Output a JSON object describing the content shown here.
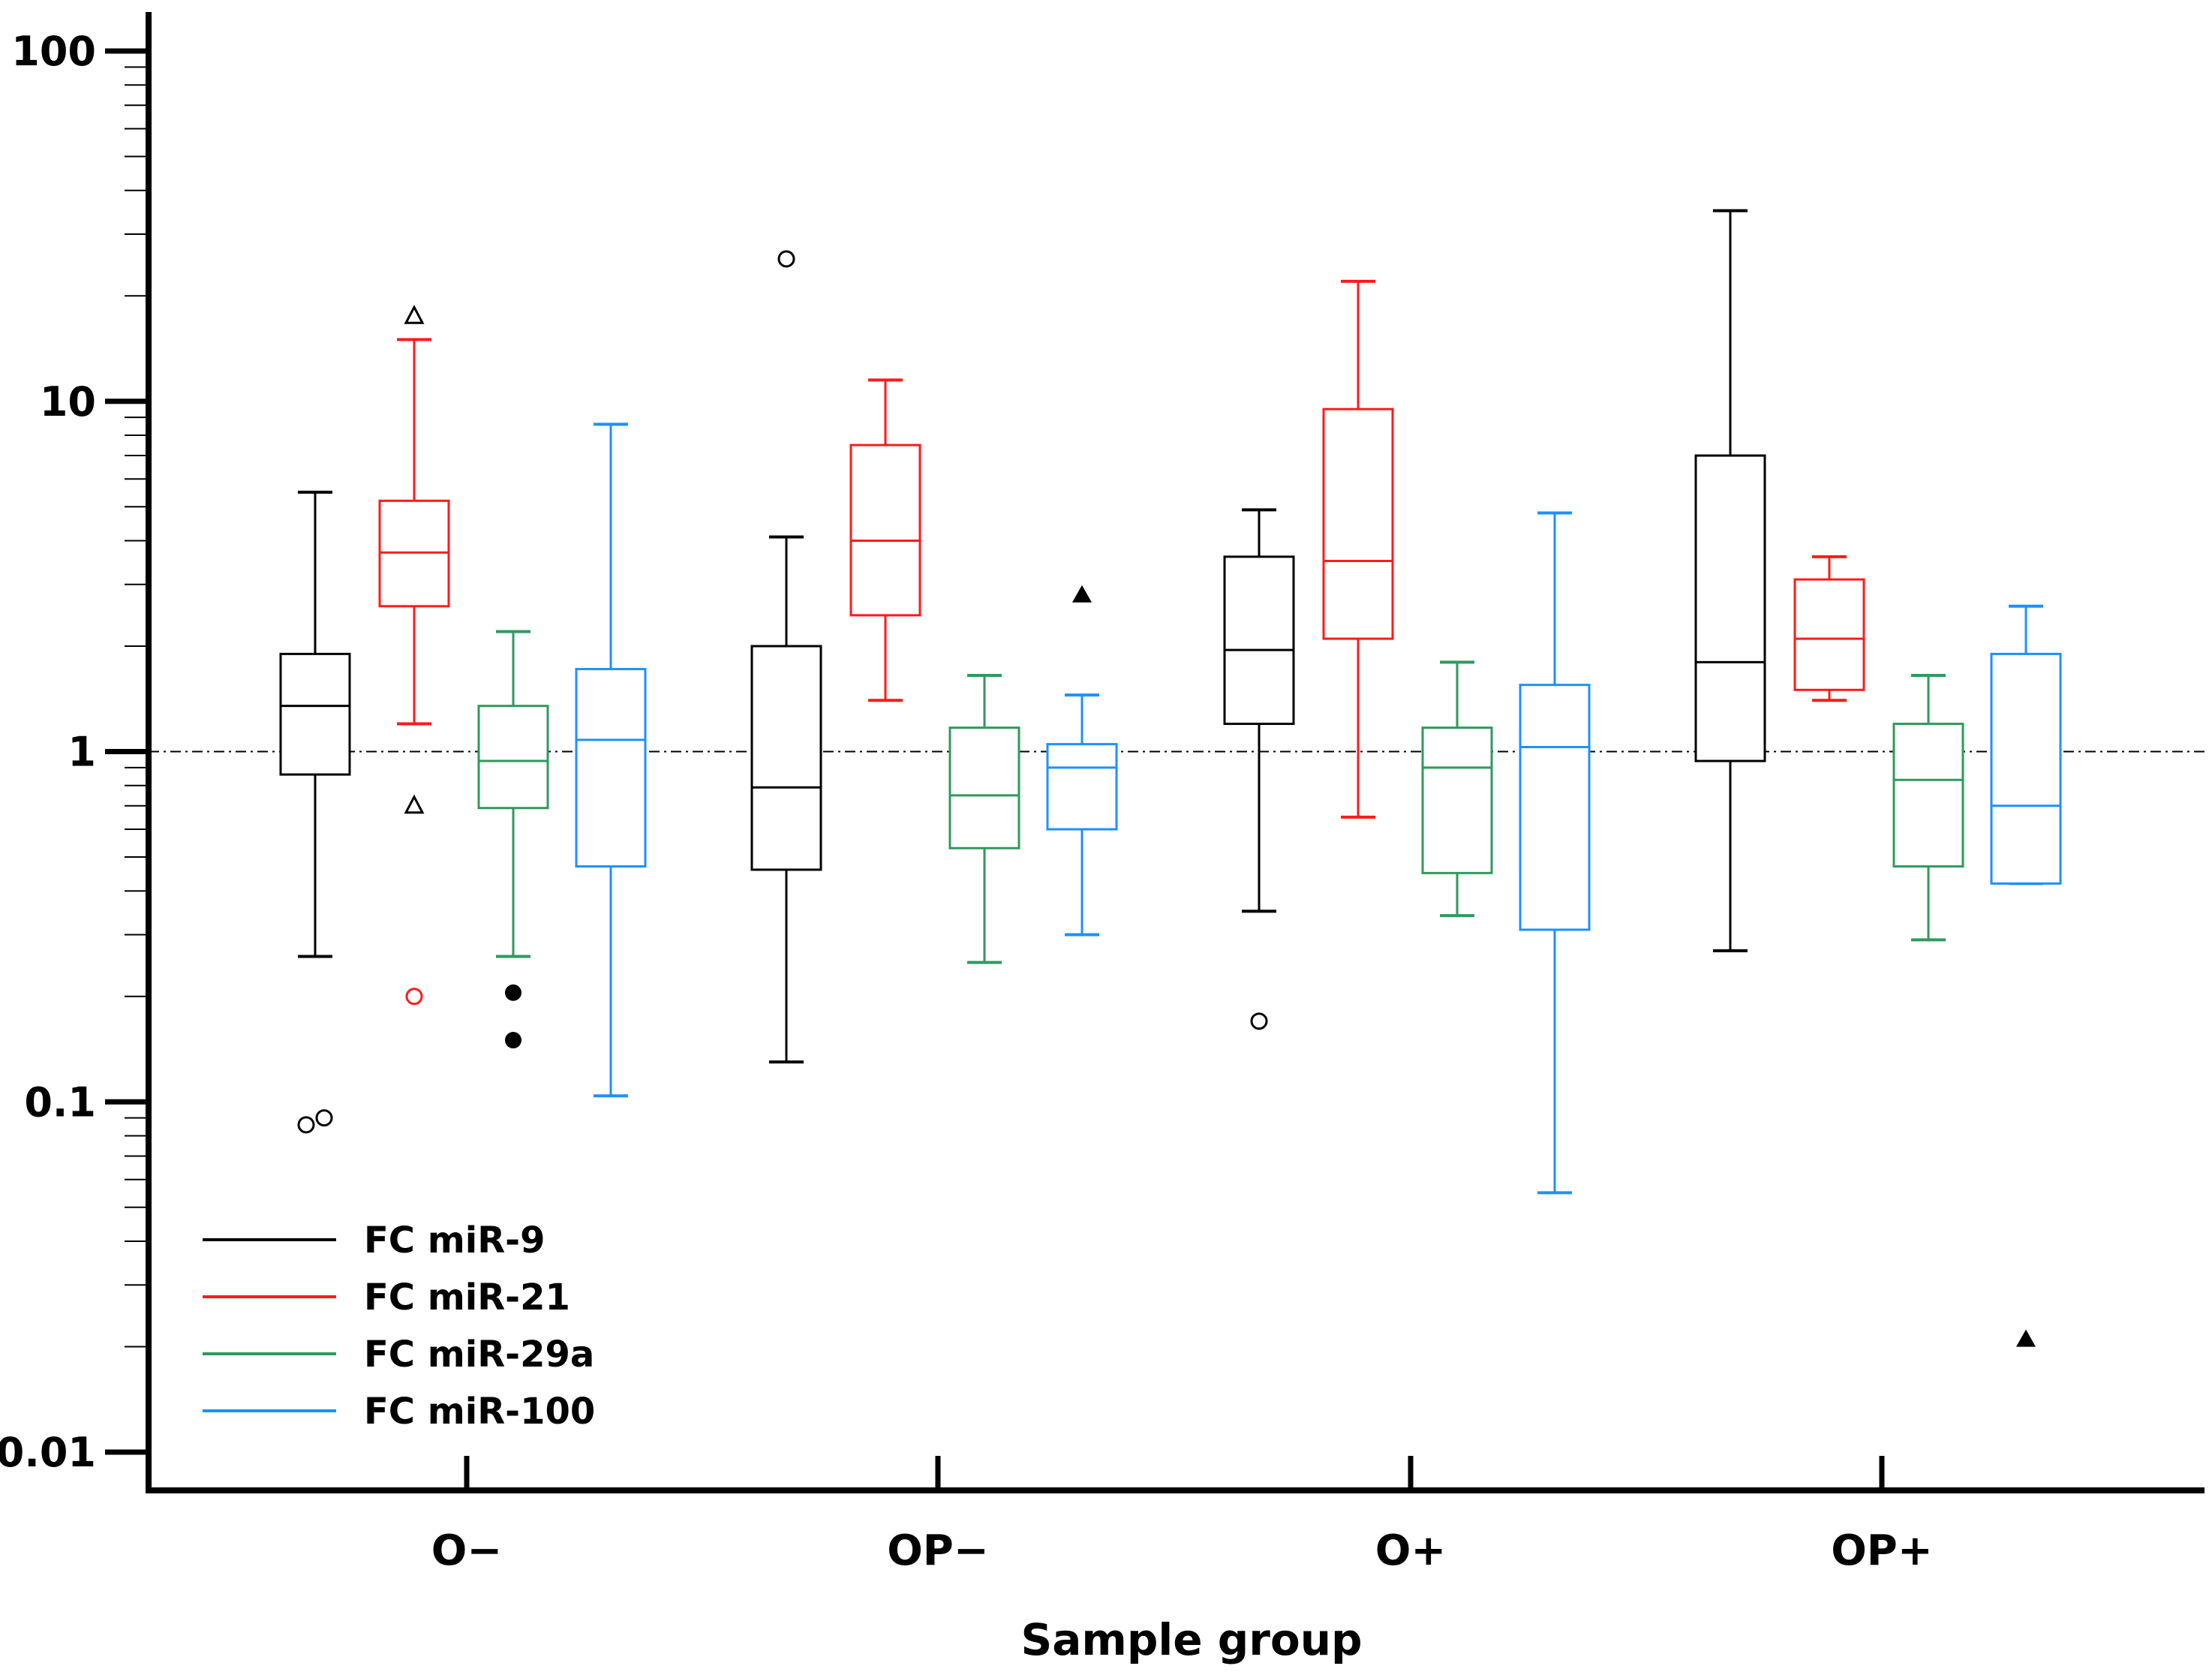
{
  "chart_data": {
    "type": "boxplot",
    "xlabel": "Sample group",
    "ylabel": "",
    "yscale": "log",
    "ylim": [
      0.01,
      100
    ],
    "yticks": [
      {
        "value": 0.01,
        "label": "0.01"
      },
      {
        "value": 0.1,
        "label": "0.1"
      },
      {
        "value": 1,
        "label": "1"
      },
      {
        "value": 10,
        "label": "10"
      },
      {
        "value": 100,
        "label": "100"
      }
    ],
    "reference_line": 1,
    "legend_position": "bottom-left",
    "categories": [
      "O−",
      "OP−",
      "O+",
      "OP+"
    ],
    "series": [
      {
        "name": "FC miR-9",
        "color": "#000000",
        "boxes": [
          {
            "whisker_low": 0.26,
            "q1": 0.86,
            "median": 1.35,
            "q3": 1.9,
            "whisker_high": 5.5,
            "outliers": [
              {
                "value": 0.086,
                "marker": "circle-open",
                "offset": -0.2
              },
              {
                "value": 0.09,
                "marker": "circle-open",
                "offset": 0.2
              }
            ]
          },
          {
            "whisker_low": 0.13,
            "q1": 0.46,
            "median": 0.79,
            "q3": 2.0,
            "whisker_high": 4.1,
            "outliers": [
              {
                "value": 25.5,
                "marker": "circle-open",
                "offset": 0
              }
            ]
          },
          {
            "whisker_low": 0.35,
            "q1": 1.2,
            "median": 1.95,
            "q3": 3.6,
            "whisker_high": 4.9,
            "outliers": [
              {
                "value": 0.17,
                "marker": "circle-open",
                "offset": 0
              }
            ]
          },
          {
            "whisker_low": 0.27,
            "q1": 0.94,
            "median": 1.8,
            "q3": 7.0,
            "whisker_high": 35,
            "outliers": []
          }
        ]
      },
      {
        "name": "FC miR-21",
        "color": "#ff1a1a",
        "boxes": [
          {
            "whisker_low": 1.2,
            "q1": 2.6,
            "median": 3.7,
            "q3": 5.2,
            "whisker_high": 15,
            "outliers": [
              {
                "value": 17.5,
                "marker": "triangle-open",
                "offset": 0
              },
              {
                "value": 0.7,
                "marker": "triangle-open",
                "offset": 0
              },
              {
                "value": 0.2,
                "marker": "circle-open-red",
                "offset": 0
              }
            ]
          },
          {
            "whisker_low": 1.4,
            "q1": 2.45,
            "median": 4.0,
            "q3": 7.5,
            "whisker_high": 11.5,
            "outliers": []
          },
          {
            "whisker_low": 0.65,
            "q1": 2.1,
            "median": 3.5,
            "q3": 9.5,
            "whisker_high": 22,
            "outliers": []
          },
          {
            "whisker_low": 1.4,
            "q1": 1.5,
            "median": 2.1,
            "q3": 3.1,
            "whisker_high": 3.6,
            "outliers": []
          }
        ]
      },
      {
        "name": "FC miR-29a",
        "color": "#2e9a5e",
        "boxes": [
          {
            "whisker_low": 0.26,
            "q1": 0.69,
            "median": 0.94,
            "q3": 1.35,
            "whisker_high": 2.2,
            "outliers": [
              {
                "value": 0.205,
                "marker": "circle-filled",
                "offset": 0
              },
              {
                "value": 0.15,
                "marker": "circle-filled",
                "offset": 0
              }
            ]
          },
          {
            "whisker_low": 0.25,
            "q1": 0.53,
            "median": 0.75,
            "q3": 1.17,
            "whisker_high": 1.65,
            "outliers": []
          },
          {
            "whisker_low": 0.34,
            "q1": 0.45,
            "median": 0.9,
            "q3": 1.17,
            "whisker_high": 1.8,
            "outliers": []
          },
          {
            "whisker_low": 0.29,
            "q1": 0.47,
            "median": 0.83,
            "q3": 1.2,
            "whisker_high": 1.65,
            "outliers": []
          }
        ]
      },
      {
        "name": "FC miR-100",
        "color": "#1e90ff",
        "boxes": [
          {
            "whisker_low": 0.104,
            "q1": 0.47,
            "median": 1.08,
            "q3": 1.72,
            "whisker_high": 8.6,
            "outliers": []
          },
          {
            "whisker_low": 0.3,
            "q1": 0.6,
            "median": 0.9,
            "q3": 1.05,
            "whisker_high": 1.45,
            "outliers": [
              {
                "value": 2.8,
                "marker": "triangle-filled",
                "offset": 0
              }
            ]
          },
          {
            "whisker_low": 0.055,
            "q1": 0.31,
            "median": 1.03,
            "q3": 1.55,
            "whisker_high": 4.8,
            "outliers": []
          },
          {
            "whisker_low": 0.42,
            "q1": 0.42,
            "median": 0.7,
            "q3": 1.9,
            "whisker_high": 2.6,
            "outliers": [
              {
                "value": 0.021,
                "marker": "triangle-filled",
                "offset": 0
              }
            ]
          }
        ]
      }
    ]
  }
}
